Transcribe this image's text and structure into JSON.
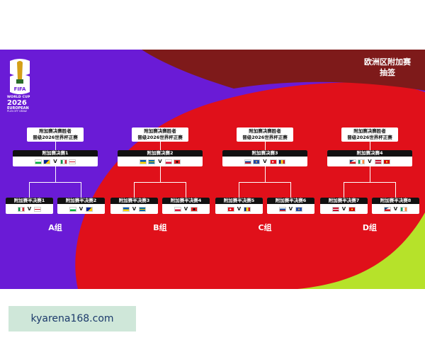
{
  "logo": {
    "line1": "WORLD CUP",
    "line2": "2026",
    "line3": "EUROPEAN",
    "line4": "PLAY-OFF DRAW",
    "emblem_text": "FIFA"
  },
  "title": {
    "line1": "欧洲区附加赛",
    "line2": "抽签"
  },
  "colors": {
    "purple": "#6a1bd6",
    "red": "#e0101a",
    "dark_red": "#7e1a1a",
    "lime": "#b6e22a"
  },
  "paths": [
    {
      "group": "A组",
      "winner": [
        "附加赛决赛胜者",
        "晋级2026世界杯正赛"
      ],
      "final": {
        "label": "附加赛决赛1",
        "flags_a": [
          "wales",
          "bosnia"
        ],
        "flags_b": [
          "italy",
          "england"
        ]
      },
      "semis": [
        {
          "label": "附加赛半决赛1",
          "flags_a": [
            "italy"
          ],
          "flags_b": [
            "england"
          ]
        },
        {
          "label": "附加赛半决赛2",
          "flags_a": [
            "wales"
          ],
          "flags_b": [
            "bosnia"
          ]
        }
      ]
    },
    {
      "group": "B组",
      "winner": [
        "附加赛决赛胜者",
        "晋级2026世界杯正赛"
      ],
      "final": {
        "label": "附加赛决赛2",
        "flags_a": [
          "ukraine",
          "sweden"
        ],
        "flags_b": [
          "poland",
          "albania"
        ]
      },
      "semis": [
        {
          "label": "附加赛半决赛3",
          "flags_a": [
            "ukraine"
          ],
          "flags_b": [
            "sweden"
          ]
        },
        {
          "label": "附加赛半决赛4",
          "flags_a": [
            "poland"
          ],
          "flags_b": [
            "albania"
          ]
        }
      ]
    },
    {
      "group": "C组",
      "winner": [
        "附加赛决赛胜者",
        "晋级2026世界杯正赛"
      ],
      "final": {
        "label": "附加赛决赛3",
        "flags_a": [
          "slovakia",
          "kosovo"
        ],
        "flags_b": [
          "turkey",
          "romania"
        ]
      },
      "semis": [
        {
          "label": "附加赛半决赛5",
          "flags_a": [
            "turkey"
          ],
          "flags_b": [
            "romania"
          ]
        },
        {
          "label": "附加赛半决赛6",
          "flags_a": [
            "slovakia"
          ],
          "flags_b": [
            "kosovo"
          ]
        }
      ]
    },
    {
      "group": "D组",
      "winner": [
        "附加赛决赛胜者",
        "晋级2026世界杯正赛"
      ],
      "final": {
        "label": "附加赛决赛4",
        "flags_a": [
          "czechia",
          "ireland"
        ],
        "flags_b": [
          "denmark",
          "north-macedonia"
        ]
      },
      "semis": [
        {
          "label": "附加赛半决赛7",
          "flags_a": [
            "denmark"
          ],
          "flags_b": [
            "north-macedonia"
          ]
        },
        {
          "label": "附加赛半决赛8",
          "flags_a": [
            "czechia"
          ],
          "flags_b": [
            "ireland"
          ]
        }
      ]
    }
  ],
  "versus": "V",
  "watermark": "kyarena168.com"
}
